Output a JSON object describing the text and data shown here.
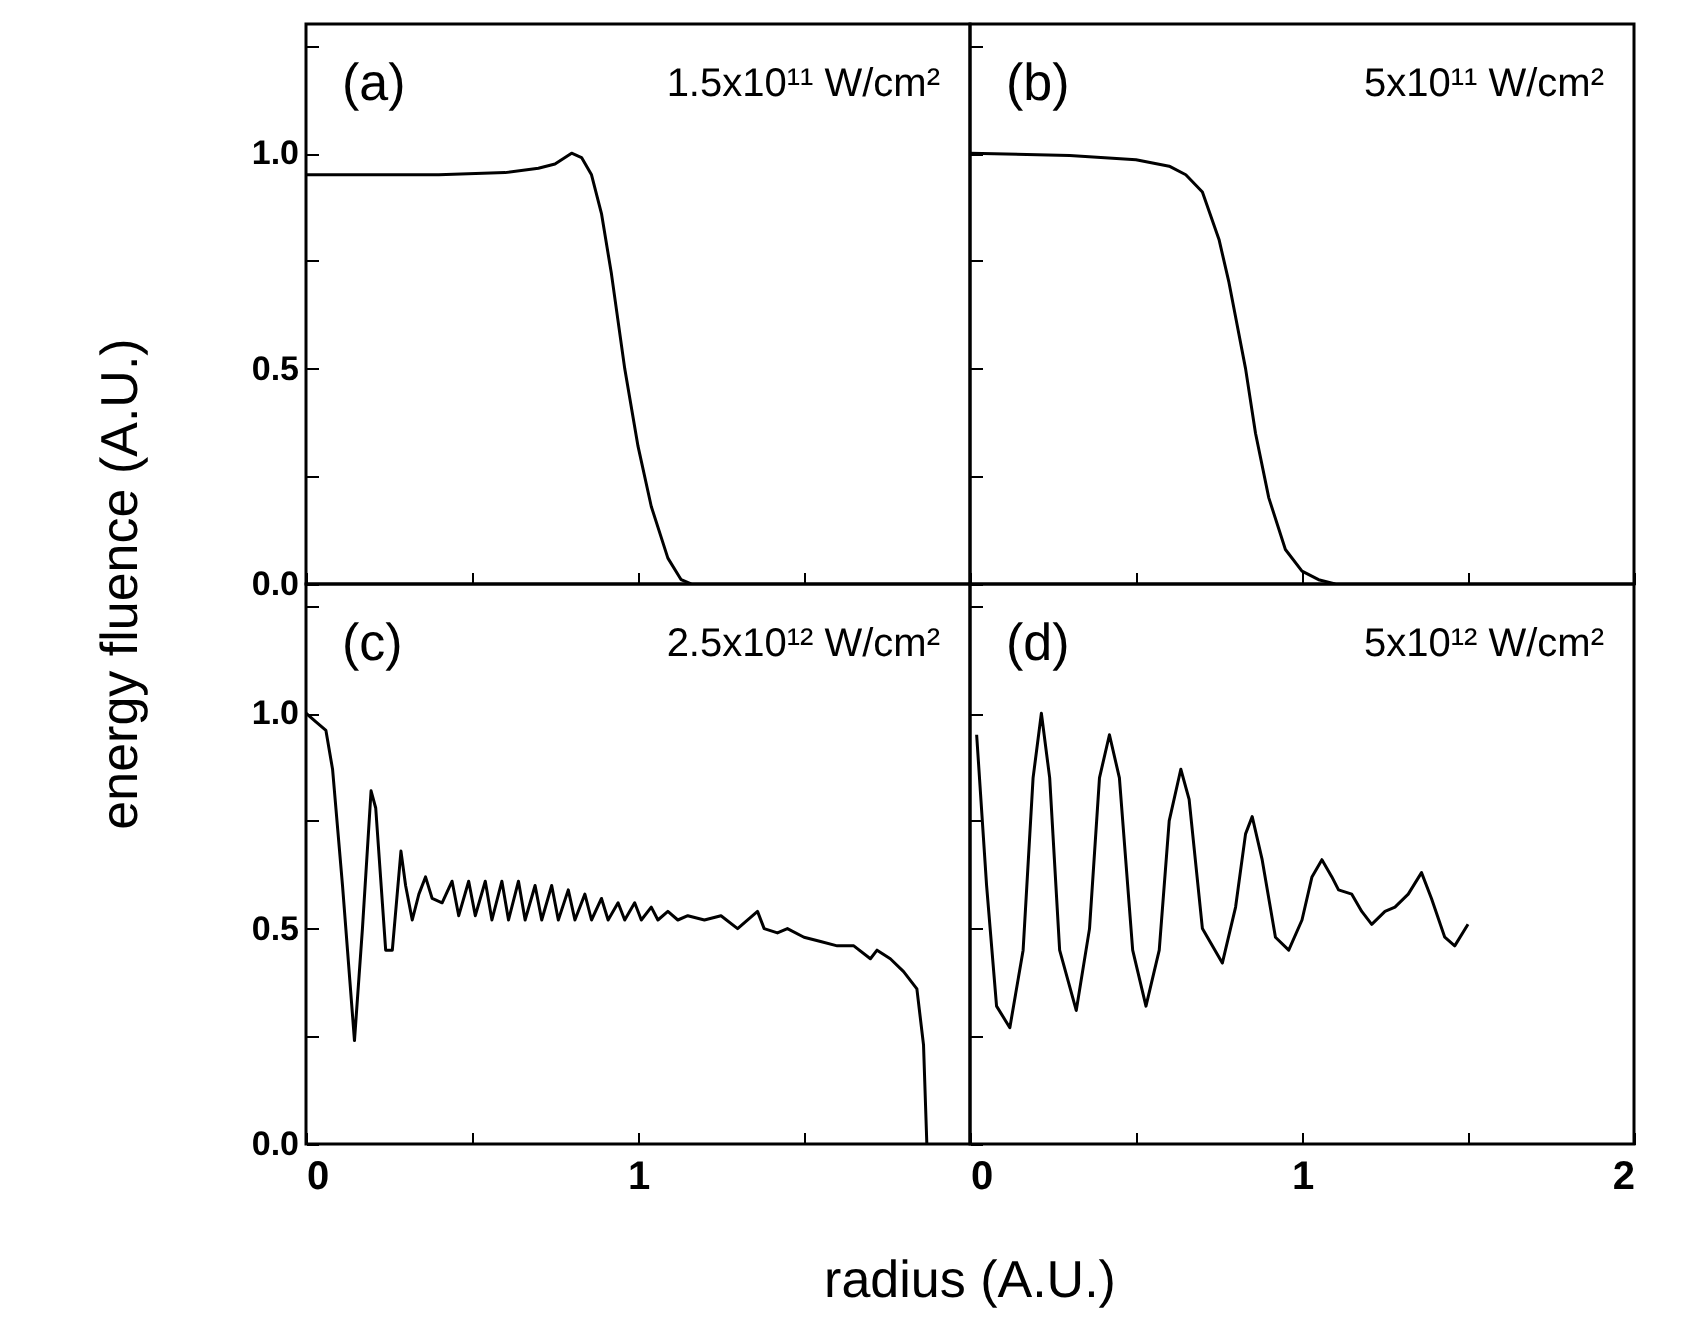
{
  "chart_data": [
    {
      "type": "line",
      "annotations": [
        "(a)",
        "1.5x10¹¹ W/cm²"
      ],
      "ylabel": "energy fluence (A.U.)",
      "xlim": [
        0,
        2
      ],
      "ylim": [
        0,
        1.3
      ],
      "xticks": [
        0,
        {
          "value": 0.5,
          "label": null
        },
        1,
        {
          "value": 1.5,
          "label": null
        },
        {
          "value": 2,
          "label": null
        }
      ],
      "yticks": [
        {
          "value": 0,
          "label": "0.0"
        },
        {
          "value": 0.25,
          "label": null
        },
        {
          "value": 0.5,
          "label": "0.5"
        },
        {
          "value": 0.75,
          "label": null
        },
        {
          "value": 1,
          "label": "1.0"
        },
        {
          "value": 1.25,
          "label": null
        }
      ],
      "tick_labels": "y",
      "series": [
        {
          "color": "#000000",
          "x": [
            0,
            0.2,
            0.4,
            0.6,
            0.7,
            0.75,
            0.8,
            0.83,
            0.86,
            0.89,
            0.92,
            0.96,
            1.0,
            1.04,
            1.09,
            1.13,
            1.16
          ],
          "values": [
            0.95,
            0.95,
            0.95,
            0.955,
            0.965,
            0.975,
            1.0,
            0.99,
            0.95,
            0.86,
            0.72,
            0.5,
            0.32,
            0.18,
            0.06,
            0.01,
            0
          ]
        }
      ]
    },
    {
      "type": "line",
      "annotations": [
        "(b)",
        "5x10¹¹ W/cm²"
      ],
      "xlim": [
        0,
        2
      ],
      "ylim": [
        0,
        1.3
      ],
      "xticks": [
        0,
        {
          "value": 0.5,
          "label": null
        },
        1,
        {
          "value": 1.5,
          "label": null
        },
        2
      ],
      "yticks": [
        {
          "value": 0,
          "label": null
        },
        {
          "value": 0.25,
          "label": null
        },
        {
          "value": 0.5,
          "label": null
        },
        {
          "value": 0.75,
          "label": null
        },
        {
          "value": 1,
          "label": null
        },
        {
          "value": 1.25,
          "label": null
        }
      ],
      "tick_labels": false,
      "series": [
        {
          "color": "#000000",
          "x": [
            0,
            0.3,
            0.5,
            0.6,
            0.65,
            0.7,
            0.75,
            0.78,
            0.8,
            0.83,
            0.86,
            0.9,
            0.95,
            1.0,
            1.05,
            1.1
          ],
          "values": [
            1.0,
            0.995,
            0.985,
            0.97,
            0.95,
            0.91,
            0.8,
            0.7,
            0.62,
            0.5,
            0.35,
            0.2,
            0.08,
            0.03,
            0.01,
            0
          ]
        }
      ]
    },
    {
      "type": "line",
      "annotations": [
        "(c)",
        "2.5x10¹² W/cm²"
      ],
      "xlabel": "radius (A.U.)",
      "xlim": [
        0,
        2
      ],
      "ylim": [
        0,
        1.3
      ],
      "xticks": [
        0,
        {
          "value": 0.5,
          "label": null
        },
        1,
        {
          "value": 1.5,
          "label": null
        },
        {
          "value": 2,
          "label": null
        }
      ],
      "yticks": [
        {
          "value": 0,
          "label": "0.0"
        },
        {
          "value": 0.25,
          "label": null
        },
        {
          "value": 0.5,
          "label": "0.5"
        },
        {
          "value": 0.75,
          "label": null
        },
        {
          "value": 1,
          "label": "1.0"
        },
        {
          "value": 1.25,
          "label": null
        }
      ],
      "series": [
        {
          "color": "#000000",
          "x": [
            0,
            0.03,
            0.06,
            0.08,
            0.11,
            0.146,
            0.17,
            0.196,
            0.21,
            0.24,
            0.26,
            0.286,
            0.3,
            0.32,
            0.34,
            0.36,
            0.38,
            0.41,
            0.44,
            0.46,
            0.49,
            0.51,
            0.54,
            0.56,
            0.59,
            0.61,
            0.64,
            0.66,
            0.69,
            0.71,
            0.74,
            0.76,
            0.79,
            0.81,
            0.84,
            0.86,
            0.89,
            0.91,
            0.94,
            0.96,
            0.99,
            1.01,
            1.04,
            1.06,
            1.09,
            1.12,
            1.15,
            1.2,
            1.25,
            1.3,
            1.36,
            1.38,
            1.42,
            1.45,
            1.5,
            1.55,
            1.6,
            1.65,
            1.7,
            1.72,
            1.76,
            1.8,
            1.84,
            1.86,
            1.87
          ],
          "values": [
            1.0,
            0.98,
            0.96,
            0.87,
            0.6,
            0.24,
            0.5,
            0.82,
            0.78,
            0.45,
            0.45,
            0.68,
            0.6,
            0.52,
            0.58,
            0.62,
            0.57,
            0.56,
            0.61,
            0.53,
            0.61,
            0.53,
            0.61,
            0.52,
            0.61,
            0.52,
            0.61,
            0.52,
            0.6,
            0.52,
            0.6,
            0.52,
            0.59,
            0.52,
            0.58,
            0.52,
            0.57,
            0.52,
            0.56,
            0.52,
            0.56,
            0.52,
            0.55,
            0.52,
            0.54,
            0.52,
            0.53,
            0.52,
            0.53,
            0.5,
            0.54,
            0.5,
            0.49,
            0.5,
            0.48,
            0.47,
            0.46,
            0.46,
            0.43,
            0.45,
            0.43,
            0.4,
            0.36,
            0.23,
            0
          ]
        }
      ]
    },
    {
      "type": "line",
      "annotations": [
        "(d)",
        "5x10¹² W/cm²"
      ],
      "xlim": [
        0,
        2
      ],
      "ylim": [
        0,
        1.3
      ],
      "xticks": [
        0,
        {
          "value": 0.5,
          "label": null
        },
        1,
        {
          "value": 1.5,
          "label": null
        },
        2
      ],
      "yticks": [
        {
          "value": 0,
          "label": null
        },
        {
          "value": 0.25,
          "label": null
        },
        {
          "value": 0.5,
          "label": null
        },
        {
          "value": 0.75,
          "label": null
        },
        {
          "value": 1,
          "label": null
        },
        {
          "value": 1.25,
          "label": null
        }
      ],
      "tick_labels": "x",
      "series": [
        {
          "color": "#000000",
          "x": [
            0.02,
            0.05,
            0.08,
            0.12,
            0.16,
            0.19,
            0.215,
            0.24,
            0.27,
            0.32,
            0.36,
            0.39,
            0.42,
            0.45,
            0.49,
            0.53,
            0.57,
            0.6,
            0.635,
            0.66,
            0.7,
            0.76,
            0.8,
            0.83,
            0.85,
            0.88,
            0.92,
            0.96,
            1.0,
            1.03,
            1.06,
            1.09,
            1.11,
            1.15,
            1.18,
            1.21,
            1.25,
            1.28,
            1.32,
            1.36,
            1.39,
            1.43,
            1.46,
            1.5
          ],
          "values": [
            0.95,
            0.6,
            0.32,
            0.27,
            0.45,
            0.85,
            1.0,
            0.85,
            0.45,
            0.31,
            0.5,
            0.85,
            0.95,
            0.85,
            0.45,
            0.32,
            0.45,
            0.75,
            0.87,
            0.8,
            0.5,
            0.42,
            0.55,
            0.72,
            0.76,
            0.66,
            0.48,
            0.45,
            0.52,
            0.62,
            0.66,
            0.62,
            0.59,
            0.58,
            0.54,
            0.51,
            0.54,
            0.55,
            0.58,
            0.63,
            0.57,
            0.48,
            0.46,
            0.51
          ]
        }
      ]
    }
  ]
}
